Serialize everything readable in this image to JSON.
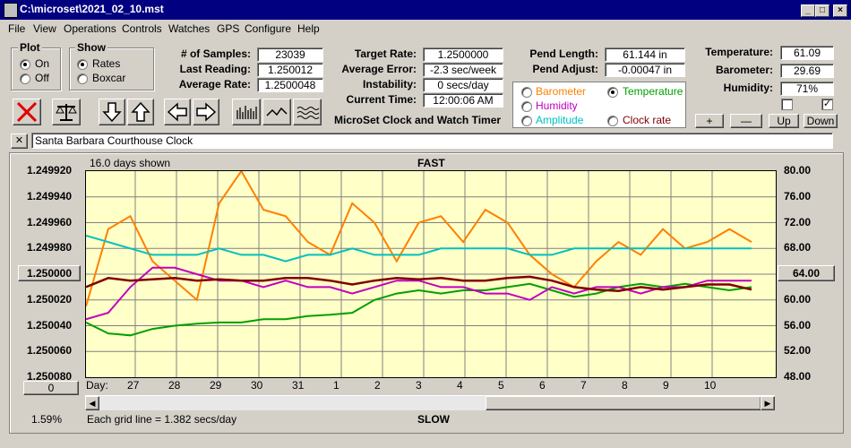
{
  "window": {
    "title": "C:\\microset\\2021_02_10.mst",
    "minimize": "_",
    "maximize": "□",
    "close": "×"
  },
  "menu": [
    "File",
    "View",
    "Operations",
    "Controls",
    "Watches",
    "GPS",
    "Configure",
    "Help"
  ],
  "plot_group": {
    "title": "Plot",
    "options": [
      {
        "label": "On",
        "selected": true
      },
      {
        "label": "Off",
        "selected": false
      }
    ]
  },
  "show_group": {
    "title": "Show",
    "options": [
      {
        "label": "Rates",
        "selected": true
      },
      {
        "label": "Boxcar",
        "selected": false
      }
    ]
  },
  "stats": {
    "samples_label": "# of Samples:",
    "samples": "23039",
    "last_reading_label": "Last Reading:",
    "last_reading": "1.250012",
    "average_rate_label": "Average Rate:",
    "average_rate": "1.2500048",
    "target_rate_label": "Target Rate:",
    "target_rate": "1.2500000",
    "average_error_label": "Average Error:",
    "average_error": "-2.3 sec/week",
    "instability_label": "Instability:",
    "instability": "0 secs/day",
    "current_time_label": "Current Time:",
    "current_time": "12:00:06 AM",
    "pend_length_label": "Pend Length:",
    "pend_length": "61.144 in",
    "pend_adjust_label": "Pend Adjust:",
    "pend_adjust": "-0.00047 in",
    "temperature_label": "Temperature:",
    "temperature": "61.09",
    "barometer_label": "Barometer:",
    "barometer": "29.69",
    "humidity_label": "Humidity:",
    "humidity": "71%"
  },
  "app_caption": "MicroSet Clock and Watch Timer",
  "sensor_options": [
    {
      "label": "Barometer",
      "color": "#ff8000",
      "selected": false
    },
    {
      "label": "Temperature",
      "color": "#00a000",
      "selected": true
    },
    {
      "label": "Humidity",
      "color": "#c000c0",
      "selected": false
    },
    {
      "label": "Amplitude",
      "color": "#00c0c0",
      "selected": false
    },
    {
      "label": "Clock rate",
      "color": "#800000",
      "selected": false
    }
  ],
  "adjust_buttons": {
    "plus": "+",
    "minus": "—",
    "up": "Up",
    "down": "Down"
  },
  "clock_name": "Santa Barbara Courthouse Clock",
  "clear_name": "✕",
  "plot_header": {
    "days_shown": "16.0 days shown",
    "top": "FAST",
    "bottom": "SLOW"
  },
  "left_button": "1.250000",
  "right_button": "64.00",
  "zero_button": "0",
  "percent": "1.59%",
  "grid_note": "Each grid line = 1.382 secs/day",
  "day_axis_label": "Day:",
  "chart_data": {
    "type": "line",
    "left_axis_ticks": [
      "1.249920",
      "1.249940",
      "1.249960",
      "1.249980",
      "1.250000",
      "1.250020",
      "1.250040",
      "1.250060",
      "1.250080"
    ],
    "right_axis_ticks": [
      "80.00",
      "76.00",
      "72.00",
      "68.00",
      "64.00",
      "60.00",
      "56.00",
      "52.00",
      "48.00"
    ],
    "ylim_left": [
      1.24992,
      1.25008
    ],
    "ylim_right": [
      48,
      80
    ],
    "days": [
      "27",
      "28",
      "29",
      "30",
      "31",
      "1",
      "2",
      "3",
      "4",
      "5",
      "6",
      "7",
      "8",
      "9",
      "10"
    ],
    "grid": true,
    "series": [
      {
        "name": "Barometer",
        "color": "#ff8000",
        "values": [
          1.250025,
          1.249965,
          1.249955,
          1.24999,
          1.250005,
          1.25002,
          1.249945,
          1.24992,
          1.24995,
          1.249955,
          1.249975,
          1.249985,
          1.249945,
          1.24996,
          1.24999,
          1.24996,
          1.249955,
          1.249975,
          1.24995,
          1.24996,
          1.249985,
          1.25,
          1.25001,
          1.24999,
          1.249975,
          1.249985,
          1.249965,
          1.24998,
          1.249975,
          1.249965,
          1.249975
        ]
      },
      {
        "name": "Temperature",
        "color": "#00a000",
        "values": [
          56.5,
          54.8,
          54.5,
          55.5,
          56.0,
          56.3,
          56.5,
          56.5,
          57.0,
          57.0,
          57.5,
          57.7,
          58.0,
          60.0,
          61.0,
          61.5,
          61.0,
          61.5,
          61.5,
          62.0,
          62.5,
          61.5,
          60.5,
          61.0,
          62.0,
          62.5,
          62.0,
          62.5,
          62.0,
          61.5,
          62.0
        ]
      },
      {
        "name": "Humidity",
        "color": "#c000c0",
        "values": [
          1.250035,
          1.25003,
          1.25001,
          1.249995,
          1.249995,
          1.25,
          1.250005,
          1.250005,
          1.25001,
          1.250005,
          1.25001,
          1.25001,
          1.250015,
          1.25001,
          1.250005,
          1.250005,
          1.25001,
          1.25001,
          1.250015,
          1.250015,
          1.25002,
          1.25001,
          1.250015,
          1.25001,
          1.25001,
          1.250015,
          1.25001,
          1.25001,
          1.250005,
          1.250005,
          1.250005
        ]
      },
      {
        "name": "Amplitude",
        "color": "#00c0c0",
        "values": [
          1.24997,
          1.249975,
          1.24998,
          1.249985,
          1.249985,
          1.249985,
          1.24998,
          1.249985,
          1.249985,
          1.24999,
          1.249985,
          1.249985,
          1.24998,
          1.249985,
          1.249985,
          1.249985,
          1.24998,
          1.24998,
          1.24998,
          1.24998,
          1.249985,
          1.249985,
          1.24998,
          1.24998,
          1.24998,
          1.24998,
          1.24998,
          1.24998,
          1.24998,
          1.24998,
          1.24998
        ]
      },
      {
        "name": "Clock rate",
        "color": "#800000",
        "values": [
          1.25001,
          1.250003,
          1.250005,
          1.250004,
          1.250003,
          1.250005,
          1.250004,
          1.250005,
          1.250005,
          1.250003,
          1.250003,
          1.250005,
          1.250008,
          1.250005,
          1.250003,
          1.250004,
          1.250003,
          1.250005,
          1.250005,
          1.250003,
          1.250002,
          1.250005,
          1.25001,
          1.250012,
          1.250013,
          1.25001,
          1.250012,
          1.25001,
          1.250008,
          1.250008,
          1.250012
        ]
      }
    ]
  }
}
